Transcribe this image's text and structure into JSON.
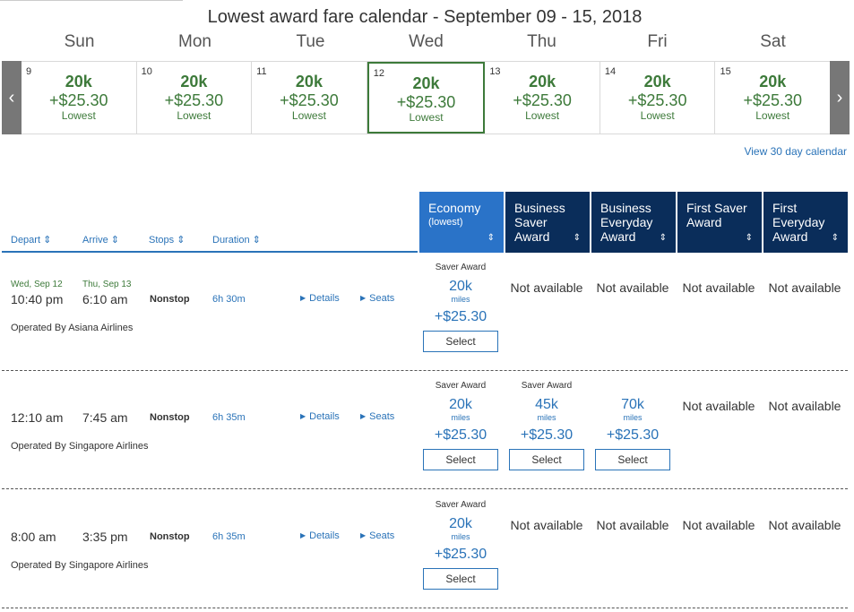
{
  "calendar": {
    "title": "Lowest award fare calendar - September 09 - 15, 2018",
    "weekdays": [
      "Sun",
      "Mon",
      "Tue",
      "Wed",
      "Thu",
      "Fri",
      "Sat"
    ],
    "prev_icon": "‹",
    "next_icon": "›",
    "days": [
      {
        "num": "9",
        "miles": "20k",
        "tax": "+$25.30",
        "label": "Lowest"
      },
      {
        "num": "10",
        "miles": "20k",
        "tax": "+$25.30",
        "label": "Lowest"
      },
      {
        "num": "11",
        "miles": "20k",
        "tax": "+$25.30",
        "label": "Lowest"
      },
      {
        "num": "12",
        "miles": "20k",
        "tax": "+$25.30",
        "label": "Lowest"
      },
      {
        "num": "13",
        "miles": "20k",
        "tax": "+$25.30",
        "label": "Lowest"
      },
      {
        "num": "14",
        "miles": "20k",
        "tax": "+$25.30",
        "label": "Lowest"
      },
      {
        "num": "15",
        "miles": "20k",
        "tax": "+$25.30",
        "label": "Lowest"
      }
    ],
    "selected_day": "12",
    "view_30_label": "View 30 day calendar",
    "accent_color": "#3d7a3a"
  },
  "sort": {
    "depart": "Depart",
    "arrive": "Arrive",
    "stops": "Stops",
    "duration": "Duration",
    "caret": "⇕"
  },
  "fare_headers": [
    {
      "title": "Economy",
      "sub": "(lowest)",
      "caret": "⇕"
    },
    {
      "title": "Business Saver Award",
      "sub": "",
      "caret": "⇕"
    },
    {
      "title": "Business Everyday Award",
      "sub": "",
      "caret": "⇕"
    },
    {
      "title": "First Saver Award",
      "sub": "",
      "caret": "⇕"
    },
    {
      "title": "First Everyday Award",
      "sub": "",
      "caret": "⇕"
    }
  ],
  "flights": [
    {
      "depart_date": "Wed, Sep 12",
      "arrive_date": "Thu, Sep 13",
      "depart_time": "10:40 pm",
      "arrive_time": "6:10 am",
      "stops": "Nonstop",
      "duration": "6h 30m",
      "details": "Details",
      "seats": "Seats",
      "operated_by": "Operated By Asiana Airlines",
      "fares": [
        {
          "type": "Saver Award",
          "miles": "20k",
          "unit": "miles",
          "tax": "+$25.30",
          "select": "Select"
        },
        {
          "na": "Not available"
        },
        {
          "na": "Not available"
        },
        {
          "na": "Not available"
        },
        {
          "na": "Not available"
        }
      ]
    },
    {
      "depart_date": "",
      "arrive_date": "",
      "depart_time": "12:10 am",
      "arrive_time": "7:45 am",
      "stops": "Nonstop",
      "duration": "6h 35m",
      "details": "Details",
      "seats": "Seats",
      "operated_by": "Operated By Singapore Airlines",
      "fares": [
        {
          "type": "Saver Award",
          "miles": "20k",
          "unit": "miles",
          "tax": "+$25.30",
          "select": "Select"
        },
        {
          "type": "Saver Award",
          "miles": "45k",
          "unit": "miles",
          "tax": "+$25.30",
          "select": "Select"
        },
        {
          "type": "",
          "miles": "70k",
          "unit": "miles",
          "tax": "+$25.30",
          "select": "Select"
        },
        {
          "na": "Not available"
        },
        {
          "na": "Not available"
        }
      ]
    },
    {
      "depart_date": "",
      "arrive_date": "",
      "depart_time": "8:00 am",
      "arrive_time": "3:35 pm",
      "stops": "Nonstop",
      "duration": "6h 35m",
      "details": "Details",
      "seats": "Seats",
      "operated_by": "Operated By Singapore Airlines",
      "fares": [
        {
          "type": "Saver Award",
          "miles": "20k",
          "unit": "miles",
          "tax": "+$25.30",
          "select": "Select"
        },
        {
          "na": "Not available"
        },
        {
          "na": "Not available"
        },
        {
          "na": "Not available"
        },
        {
          "na": "Not available"
        }
      ]
    }
  ]
}
